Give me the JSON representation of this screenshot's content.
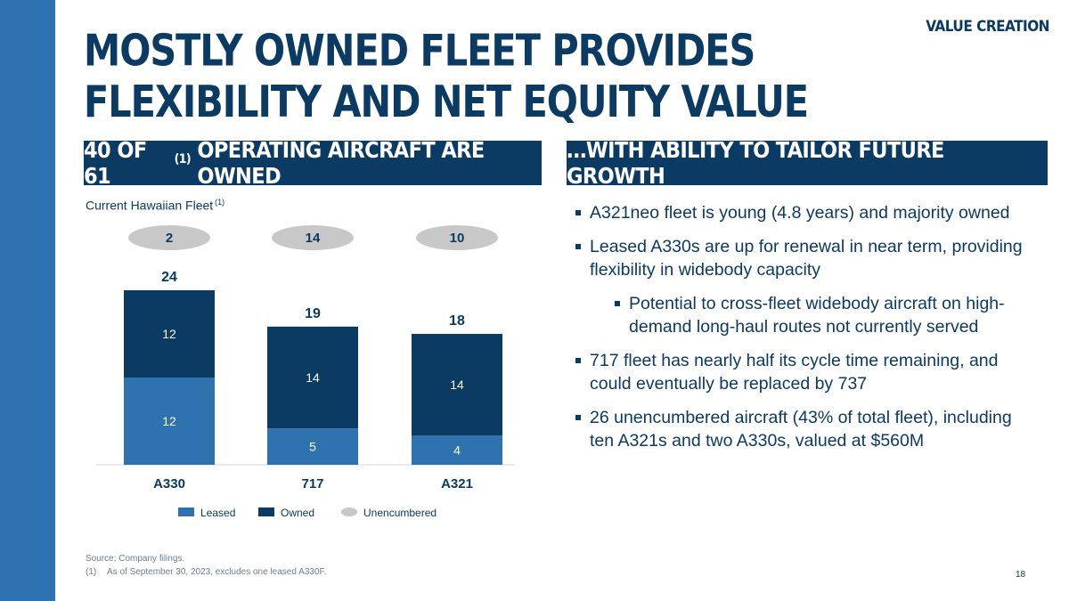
{
  "slide": {
    "section_tag": "VALUE CREATION",
    "title_line1": "MOSTLY OWNED FLEET PROVIDES",
    "title_line2": "FLEXIBILITY AND NET EQUITY VALUE",
    "left_header_text": "40 OF 61",
    "left_header_sup": "(1)",
    "left_header_rest": "OPERATING AIRCRAFT ARE OWNED",
    "right_header": "…WITH ABILITY TO TAILOR FUTURE GROWTH",
    "chart_subtitle": "Current Hawaiian Fleet",
    "chart_subtitle_sup": "(1)",
    "bullets": [
      "A321neo fleet is young (4.8 years) and majority owned",
      "Leased A330s are up for renewal in near term, providing flexibility in widebody capacity",
      "Potential to cross-fleet widebody aircraft on high-demand long-haul routes not currently served",
      "717 fleet has nearly half its cycle time remaining, and could eventually be replaced by 737",
      "26 unencumbered aircraft (43% of total fleet), including ten A321s and two A330s, valued at $560M"
    ],
    "footnote_source": "Source: Company filings.",
    "footnote_mark": "(1)",
    "footnote_text": "As of September 30, 2023, excludes one leased A330F.",
    "page_number": "18"
  },
  "chart_data": {
    "type": "bar",
    "stacked": true,
    "title": "Current Hawaiian Fleet",
    "categories": [
      "A330",
      "717",
      "A321"
    ],
    "series": [
      {
        "name": "Leased",
        "values": [
          12,
          5,
          4
        ],
        "color": "#2e73b0"
      },
      {
        "name": "Owned",
        "values": [
          12,
          14,
          14
        ],
        "color": "#0b3a63"
      }
    ],
    "totals": [
      24,
      19,
      18
    ],
    "unencumbered": {
      "name": "Unencumbered",
      "values": [
        2,
        14,
        10
      ],
      "color": "#c8c8c8"
    },
    "legend": [
      "Leased",
      "Owned",
      "Unencumbered"
    ],
    "ylim": [
      0,
      24
    ],
    "grid": false,
    "text_color": "#0b3a63"
  }
}
